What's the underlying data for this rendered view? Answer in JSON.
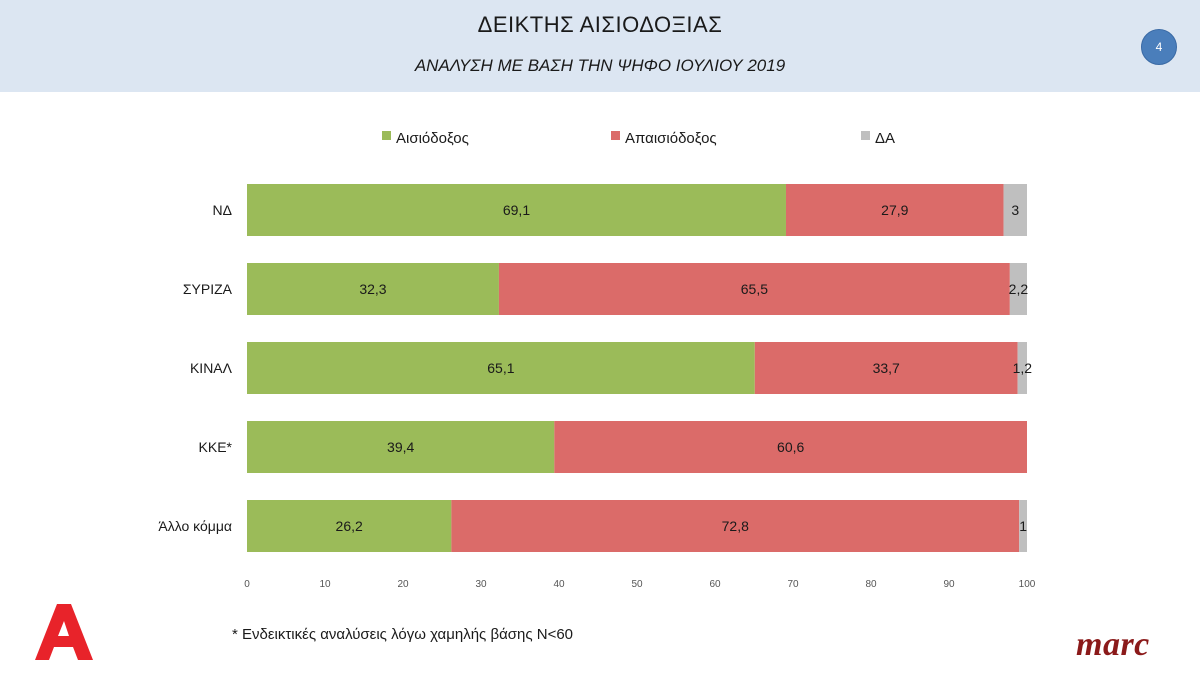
{
  "header": {
    "title": "ΔΕΙΚΤΗΣ ΑΙΣΙΟΔΟΞΙΑΣ",
    "subtitle": "ΑΝΑΛΥΣΗ ΜΕ ΒΑΣΗ ΤΗΝ ΨΗΦΟ ΙΟΥΛΙΟΥ 2019",
    "page_number": "4"
  },
  "colors": {
    "optimistic": "#9bbb59",
    "pessimistic": "#db6b69",
    "na": "#bfbfbf",
    "header_bg": "#dce6f2"
  },
  "chart_data": {
    "type": "bar",
    "orientation": "horizontal",
    "stacked": true,
    "categories": [
      "ΝΔ",
      "ΣΥΡΙΖΑ",
      "ΚΙΝΑΛ",
      "ΚΚΕ*",
      "Άλλο κόμμα"
    ],
    "series": [
      {
        "name": "Αισιόδοξος",
        "values": [
          69.1,
          32.3,
          65.1,
          39.4,
          26.2
        ],
        "labels": [
          "69,1",
          "32,3",
          "65,1",
          "39,4",
          "26,2"
        ]
      },
      {
        "name": "Απαισιόδοξος",
        "values": [
          27.9,
          65.5,
          33.7,
          60.6,
          72.8
        ],
        "labels": [
          "27,9",
          "65,5",
          "33,7",
          "60,6",
          "72,8"
        ]
      },
      {
        "name": "ΔΑ",
        "values": [
          3,
          2.2,
          1.2,
          0,
          1
        ],
        "labels": [
          "3",
          "2,2",
          "1,2",
          "",
          "1"
        ]
      }
    ],
    "xlim": [
      0,
      100
    ],
    "xticks": [
      "0",
      "10",
      "20",
      "30",
      "40",
      "50",
      "60",
      "70",
      "80",
      "90",
      "100"
    ],
    "legend": "top",
    "grid": false
  },
  "footnote": "* Ενδεικτικές αναλύσεις λόγω χαμηλής βάσης Ν<60",
  "logos": {
    "alpha": "alpha-logo",
    "marc": "marc"
  }
}
